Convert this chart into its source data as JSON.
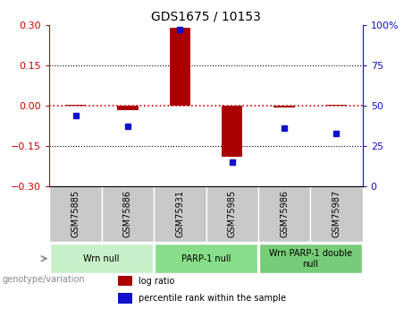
{
  "title": "GDS1675 / 10153",
  "samples": [
    "GSM75885",
    "GSM75886",
    "GSM75931",
    "GSM75985",
    "GSM75986",
    "GSM75987"
  ],
  "log_ratio": [
    0.003,
    -0.018,
    0.29,
    -0.19,
    -0.008,
    0.002
  ],
  "percentile_rank": [
    44,
    37,
    97,
    15,
    36,
    33
  ],
  "ylim_left": [
    -0.3,
    0.3
  ],
  "ylim_right": [
    0,
    100
  ],
  "yticks_left": [
    -0.3,
    -0.15,
    0,
    0.15,
    0.3
  ],
  "yticks_right": [
    0,
    25,
    50,
    75,
    100
  ],
  "bar_color": "#aa0000",
  "dot_color": "#1111cc",
  "zero_line_color": "#cc0000",
  "hline_color": "#000000",
  "hlines": [
    0.15,
    -0.15
  ],
  "groups": [
    {
      "label": "Wrn null",
      "start": 0,
      "end": 1,
      "color": "#c8f0c8"
    },
    {
      "label": "PARP-1 null",
      "start": 2,
      "end": 3,
      "color": "#88dd88"
    },
    {
      "label": "Wrn PARP-1 double\nnull",
      "start": 4,
      "end": 5,
      "color": "#77cc77"
    }
  ],
  "legend_items": [
    {
      "label": "log ratio",
      "color": "#aa0000"
    },
    {
      "label": "percentile rank within the sample",
      "color": "#1111cc"
    }
  ],
  "genotype_label": "genotype/variation",
  "background_plot": "#ffffff",
  "background_sample": "#c8c8c8",
  "tick_label_color_left": "#cc0000",
  "tick_label_color_right": "#1111cc",
  "bar_width": 0.4,
  "dot_size": 5
}
